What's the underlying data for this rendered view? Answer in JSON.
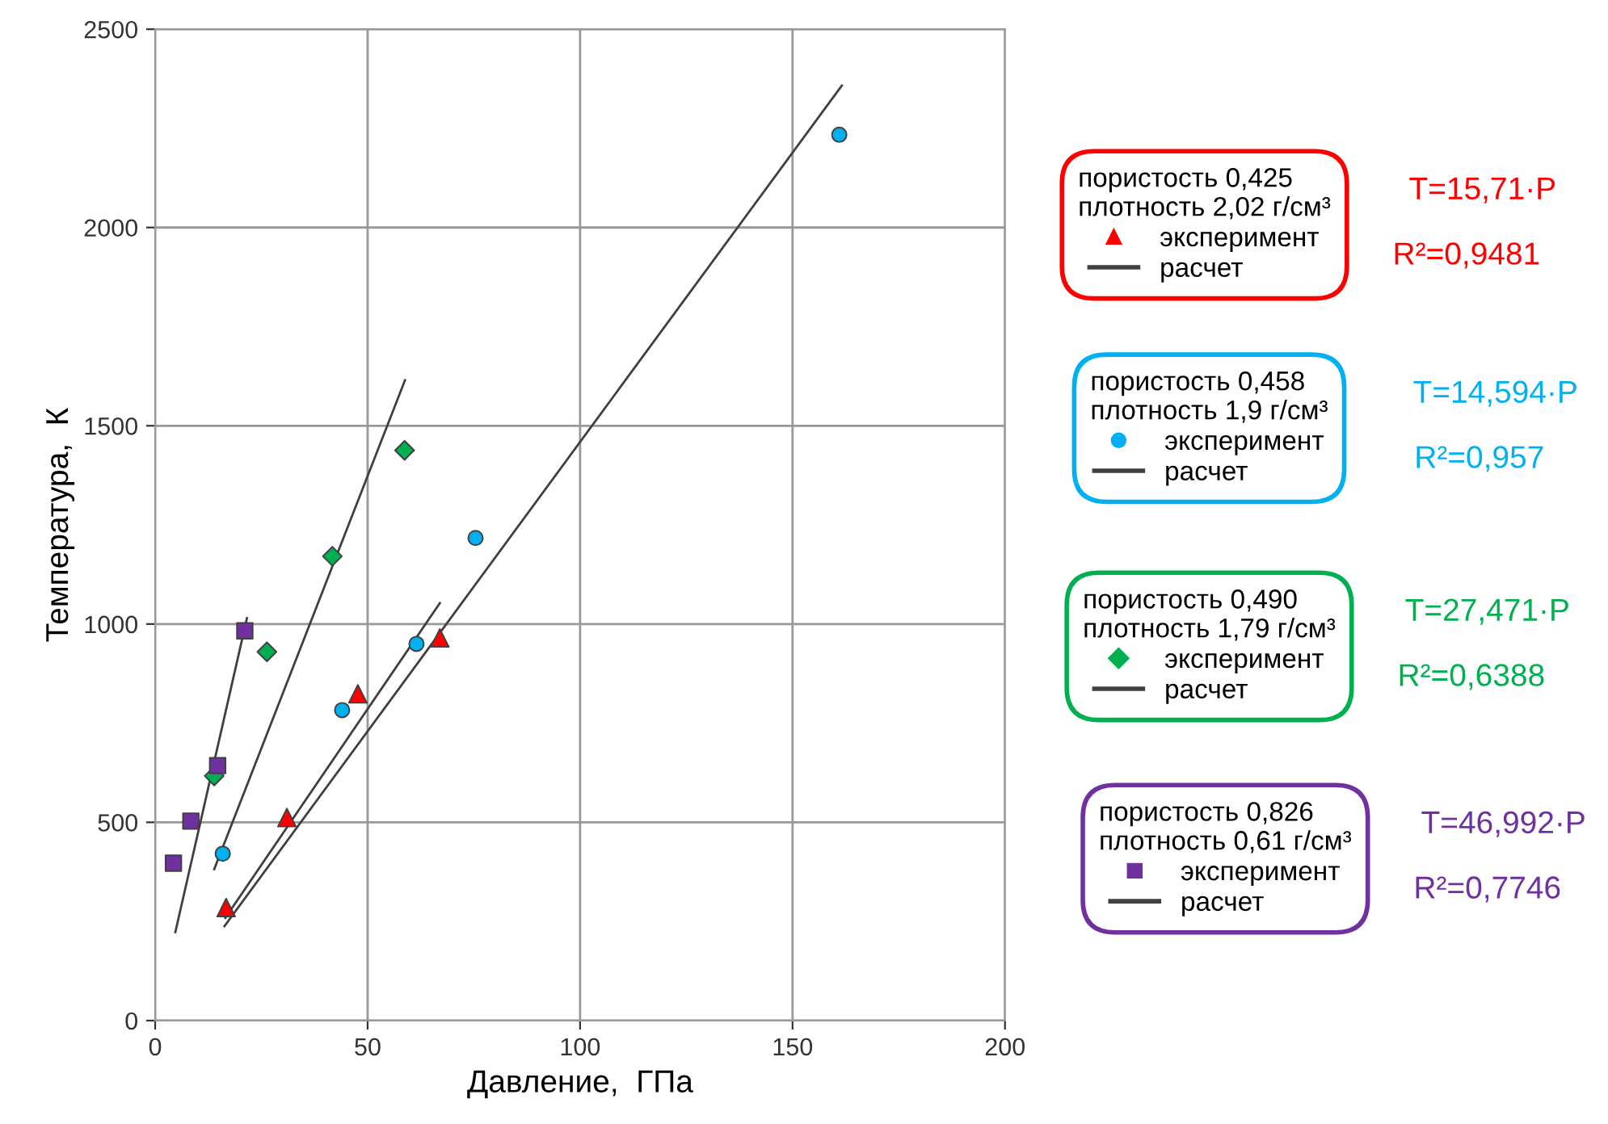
{
  "chart_data": {
    "type": "scatter",
    "xlabel": "Давление,  ГПа",
    "ylabel": "Температура,  К",
    "xlim": [
      0,
      200
    ],
    "xticks": [
      0,
      50,
      100,
      150,
      200
    ],
    "ylim": [
      0,
      2500
    ],
    "yticks": [
      0,
      500,
      1000,
      1500,
      2000,
      2500
    ],
    "grid": true,
    "legend": "right",
    "series": [
      {
        "name": "эксперимент",
        "color": "#ff0000",
        "marker": "triangle",
        "x": [
          16.7,
          31,
          47.7,
          67
        ],
        "values": [
          285,
          512,
          824,
          965
        ]
      },
      {
        "name": "расчет",
        "type": "line",
        "color": "#404040",
        "marker": "none",
        "line_style": "solid",
        "x": [
          16.5,
          67
        ],
        "values": [
          259,
          1053
        ]
      },
      {
        "name": "эксперимент",
        "color": "#00b0f0",
        "marker": "circle",
        "x": [
          15.9,
          44,
          61.5,
          75.4,
          161
        ],
        "values": [
          421,
          783,
          950,
          1217,
          2234
        ]
      },
      {
        "name": "расчет",
        "type": "line",
        "color": "#404040",
        "marker": "none",
        "line_style": "solid",
        "x": [
          16.3,
          161.6
        ],
        "values": [
          238,
          2358
        ]
      },
      {
        "name": "эксперимент",
        "color": "#00b050",
        "marker": "diamond",
        "x": [
          13.9,
          26.3,
          41.7,
          58.7
        ],
        "values": [
          617,
          930,
          1171,
          1438
        ]
      },
      {
        "name": "расчет",
        "type": "line",
        "color": "#404040",
        "marker": "none",
        "line_style": "solid",
        "x": [
          13.9,
          58.8
        ],
        "values": [
          382,
          1615
        ]
      },
      {
        "name": "эксперимент",
        "color": "#7030a0",
        "marker": "square",
        "x": [
          4.3,
          8.4,
          14.7,
          21.1
        ],
        "values": [
          397,
          503,
          643,
          983
        ]
      },
      {
        "name": "расчет",
        "type": "line",
        "color": "#404040",
        "marker": "none",
        "line_style": "solid",
        "x": [
          4.75,
          21.6
        ],
        "values": [
          223,
          1015
        ]
      }
    ],
    "annotations": [
      "пористость 0,425",
      "плотность 2,02 г/см³",
      "T=15,71·P",
      "R²=0,9481",
      "пористость 0,458",
      "плотность 1,9 г/см³",
      "T=14,594·P",
      "R²=0,957",
      "пористость 0,490",
      "плотность 1,79 г/см³",
      "T=27,471·P",
      "R²=0,6388",
      "пористость 0,826",
      "плотность 0,61 г/см³",
      "T=46,992·P",
      "R²=0,7746"
    ]
  }
}
